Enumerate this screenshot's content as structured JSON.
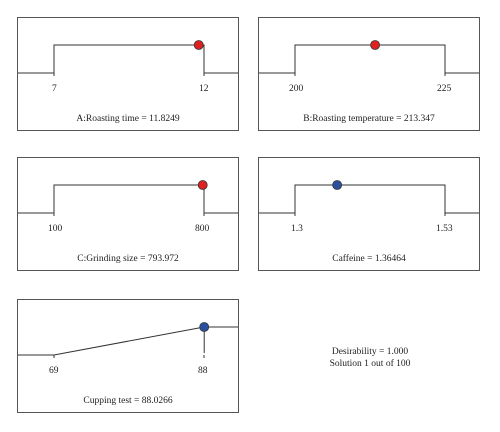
{
  "chart_data": [
    {
      "type": "line",
      "caption": "A:Roasting time = 11.8249",
      "low_label": "7",
      "high_label": "12",
      "low": 7,
      "high": 12,
      "shape": "step-up",
      "value": 11.8249,
      "marker_color": "#e02020"
    },
    {
      "type": "line",
      "caption": "B:Roasting temperature = 213.347",
      "low_label": "200",
      "high_label": "225",
      "low": 200,
      "high": 225,
      "shape": "step-up",
      "value": 213.347,
      "marker_color": "#e02020"
    },
    {
      "type": "line",
      "caption": "C:Grinding size = 793.972",
      "low_label": "100",
      "high_label": "800",
      "low": 100,
      "high": 800,
      "shape": "step-up",
      "value": 793.972,
      "marker_color": "#e02020"
    },
    {
      "type": "line",
      "caption": "Caffeine = 1.36464",
      "low_label": "1.3",
      "high_label": "1.53",
      "low": 1.3,
      "high": 1.53,
      "shape": "step-up",
      "value": 1.36464,
      "marker_color": "#2a4fa0"
    },
    {
      "type": "line",
      "caption": "Cupping test = 88.0266",
      "low_label": "69",
      "high_label": "88",
      "low": 69,
      "high": 88,
      "shape": "ramp-up",
      "value": 88.0266,
      "marker_color": "#2a4fa0"
    }
  ],
  "summary": {
    "desirability": "Desirability = 1.000",
    "solution": "Solution 1 out of 100"
  }
}
